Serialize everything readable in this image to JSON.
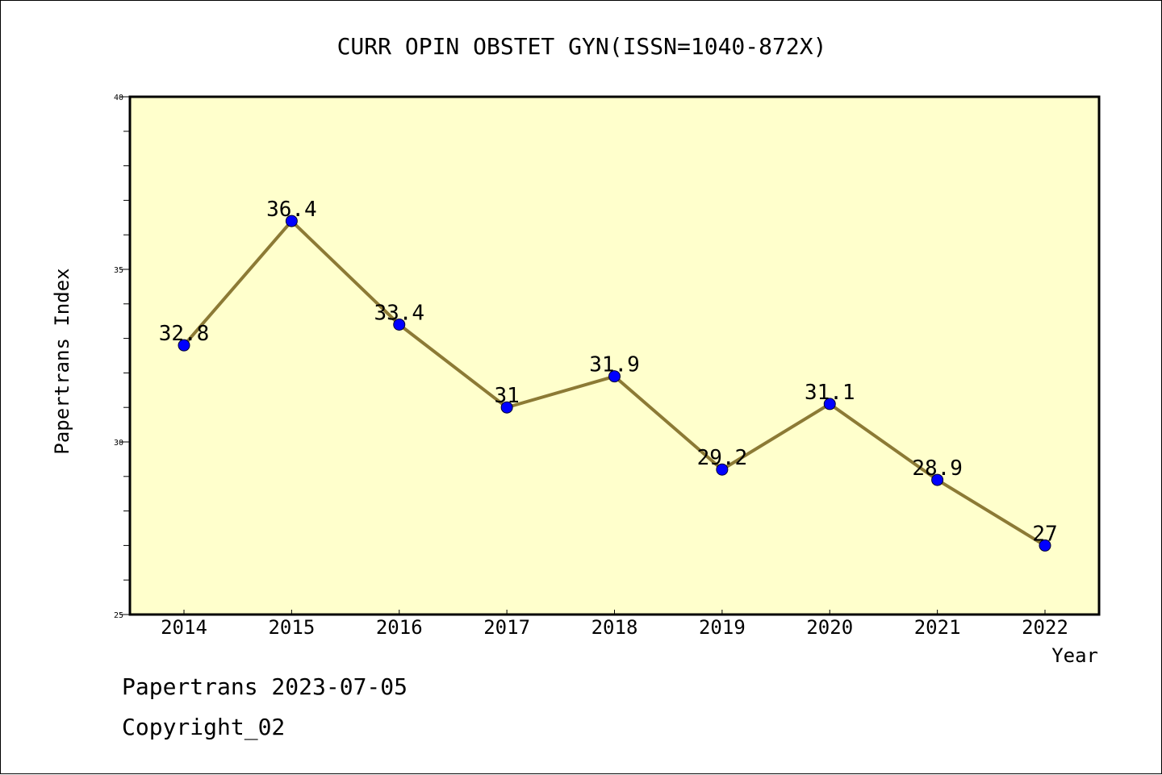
{
  "chart_data": {
    "type": "line",
    "title": "CURR OPIN OBSTET GYN(ISSN=1040-872X)",
    "xlabel": "Year",
    "ylabel": "Papertrans Index",
    "x": [
      "2014",
      "2015",
      "2016",
      "2017",
      "2018",
      "2019",
      "2020",
      "2021",
      "2022"
    ],
    "series": [
      {
        "values": [
          32.8,
          36.4,
          33.4,
          31,
          31.9,
          29.2,
          31.1,
          28.9,
          27
        ],
        "data_labels": [
          "32.8",
          "36.4",
          "33.4",
          "31",
          "31.9",
          "29.2",
          "31.1",
          "28.9",
          "27"
        ]
      }
    ],
    "ylim": [
      25,
      40
    ],
    "y_ticks": [
      "25",
      "30",
      "35",
      "40"
    ],
    "legend": "none",
    "grid": false
  },
  "colors": {
    "plot_background": "#ffffcc",
    "line": "#8c7a35",
    "marker": "#0000ff",
    "axis": "#000000"
  },
  "footer": {
    "source": "Papertrans 2023-07-05",
    "copyright": "Copyright_02"
  }
}
